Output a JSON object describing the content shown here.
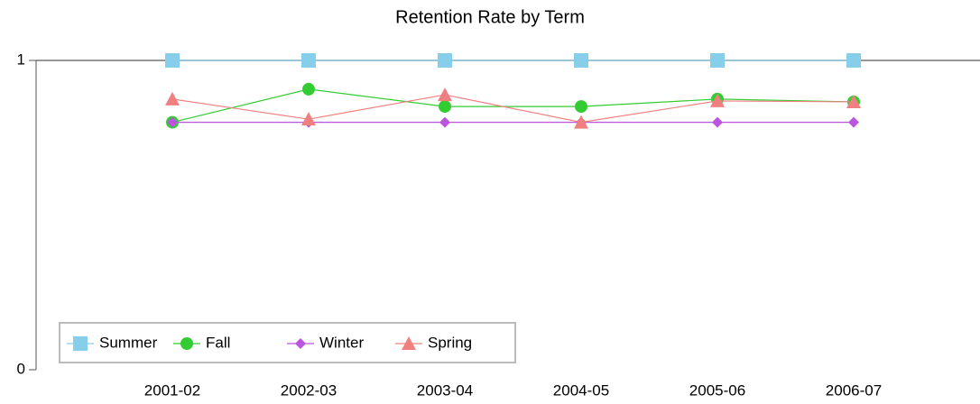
{
  "chart_data": {
    "type": "line",
    "title": "Retention Rate by Term",
    "categories": [
      "2001-02",
      "2002-03",
      "2003-04",
      "2004-05",
      "2005-06",
      "2006-07"
    ],
    "series": [
      {
        "name": "Summer",
        "color": "#87ceeb",
        "marker": "square",
        "values": [
          1,
          1,
          1,
          1,
          1,
          1
        ]
      },
      {
        "name": "Fall",
        "color": "#33cc33",
        "marker": "circle",
        "values": [
          0.8,
          0.907,
          0.851,
          0.851,
          0.875,
          0.866
        ]
      },
      {
        "name": "Winter",
        "color": "#bb55dd",
        "marker": "diamond",
        "values": [
          0.8,
          0.8,
          0.8,
          0.8,
          0.8,
          0.8
        ]
      },
      {
        "name": "Spring",
        "color": "#f08080",
        "marker": "triangle",
        "values": [
          0.875,
          0.81,
          0.889,
          0.8,
          0.869,
          0.866
        ]
      }
    ],
    "ylim": [
      0,
      1
    ],
    "yticks": [
      0,
      1
    ],
    "grid": true,
    "legend": "lower left"
  }
}
